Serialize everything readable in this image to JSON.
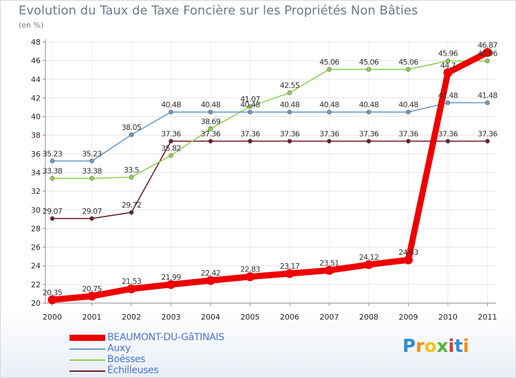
{
  "chart_data": {
    "type": "line",
    "title": "Evolution du Taux de Taxe Foncière sur les Propriétés Non Bâties",
    "subtitle": "(en %)",
    "x": [
      "2000",
      "2001",
      "2002",
      "2003",
      "2004",
      "2005",
      "2006",
      "2007",
      "2008",
      "2009",
      "2010",
      "2011"
    ],
    "ylim": [
      20,
      48
    ],
    "yticks": [
      "20",
      "22",
      "24",
      "26",
      "28",
      "30",
      "32",
      "34",
      "36",
      "38",
      "40",
      "42",
      "44",
      "46",
      "48"
    ],
    "grid": true,
    "legend_position": "bottom-left",
    "series": [
      {
        "name": "Échilleuses",
        "color": "#6b1f2a",
        "values": [
          29.07,
          29.07,
          29.72,
          37.36,
          37.36,
          37.36,
          37.36,
          37.36,
          37.36,
          37.36,
          37.36,
          37.36
        ],
        "labels": [
          "29.07",
          "29.07",
          "29.72",
          "37.36",
          "37.36",
          "37.36",
          "37.36",
          "37.36",
          "37.36",
          "37.36",
          "37.36",
          "37.36"
        ]
      },
      {
        "name": "Boësses",
        "color": "#8fd14f",
        "values": [
          33.38,
          33.38,
          33.5,
          35.82,
          38.69,
          41.07,
          42.55,
          45.06,
          45.06,
          45.06,
          45.96,
          45.96
        ],
        "labels": [
          "33.38",
          "33.38",
          "33.5",
          "35.82",
          "38.69",
          "41.07",
          "42.55",
          "45.06",
          "45.06",
          "45.06",
          "45.96",
          "45.96"
        ]
      },
      {
        "name": "Auxy",
        "color": "#6d9ac8",
        "values": [
          35.23,
          35.23,
          38.05,
          40.48,
          40.48,
          40.48,
          40.48,
          40.48,
          40.48,
          40.48,
          41.48,
          41.48
        ],
        "labels": [
          "35.23",
          "35.23",
          "38.05",
          "40.48",
          "40.48",
          "40.48",
          "40.48",
          "40.48",
          "40.48",
          "40.48",
          "41.48",
          "41.48"
        ]
      },
      {
        "name": "BEAUMONT-DU-GâTINAIS",
        "color": "#ee0000",
        "values": [
          20.35,
          20.75,
          21.53,
          21.99,
          22.42,
          22.83,
          23.17,
          23.51,
          24.12,
          24.63,
          44.7,
          46.87
        ],
        "labels": [
          "20.35",
          "20.75",
          "21.53",
          "21.99",
          "22.42",
          "22.83",
          "23.17",
          "23.51",
          "24.12",
          "24.63",
          "44.7",
          "46.87"
        ]
      }
    ],
    "legend": [
      "BEAUMONT-DU-GâTINAIS",
      "Auxy",
      "Boësses",
      "Échilleuses"
    ]
  },
  "logo": {
    "text": "Proxiti",
    "letters": [
      "P",
      "r",
      "o",
      "x",
      "i",
      "t",
      "i"
    ],
    "colors": [
      "#2e8ccf",
      "#f28c18",
      "#f2c318",
      "#55b535",
      "#d23a3a",
      "#2e8ccf",
      "#f28c18"
    ]
  }
}
